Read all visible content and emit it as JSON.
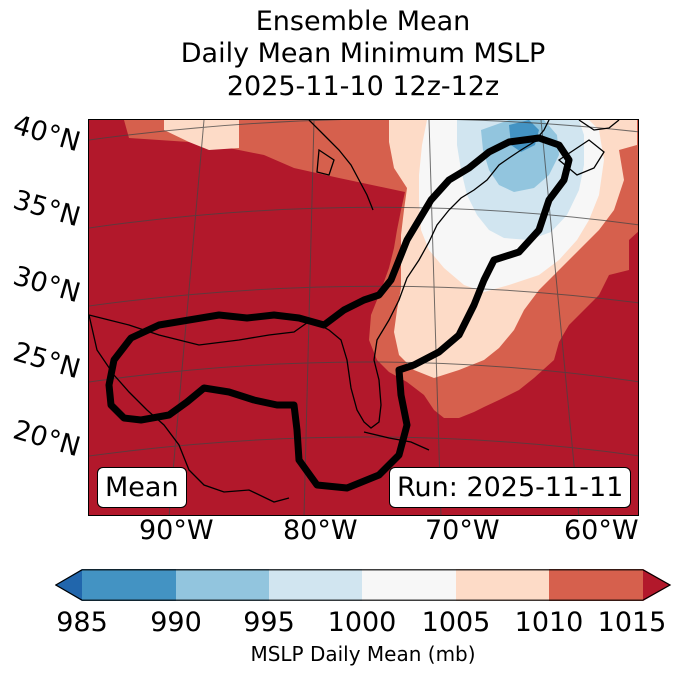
{
  "title": {
    "line1": "Ensemble Mean",
    "line2": "Daily Mean Minimum MSLP",
    "line3": "2025-11-10 12z-12z"
  },
  "lat_labels": [
    "40°N",
    "35°N",
    "30°N",
    "25°N",
    "20°N"
  ],
  "lon_labels": [
    "90°W",
    "80°W",
    "70°W",
    "60°W"
  ],
  "mean_label": "Mean",
  "run_label": "Run: 2025-11-11",
  "colorbar": {
    "label": "MSLP Daily Mean (mb)",
    "ticks": [
      "985",
      "990",
      "995",
      "1000",
      "1005",
      "1010",
      "1015"
    ],
    "bins": [
      {
        "range": "<985",
        "color": "#2166ac"
      },
      {
        "range": "985-990",
        "color": "#4393c3"
      },
      {
        "range": "990-995",
        "color": "#92c5de"
      },
      {
        "range": "995-1000",
        "color": "#d1e5f0"
      },
      {
        "range": "1000-1005",
        "color": "#f7f7f7"
      },
      {
        "range": "1005-1010",
        "color": "#fddbc7"
      },
      {
        "range": "1010-1015",
        "color": "#d6604d"
      },
      {
        "range": ">1015",
        "color": "#b2182b"
      }
    ]
  }
}
